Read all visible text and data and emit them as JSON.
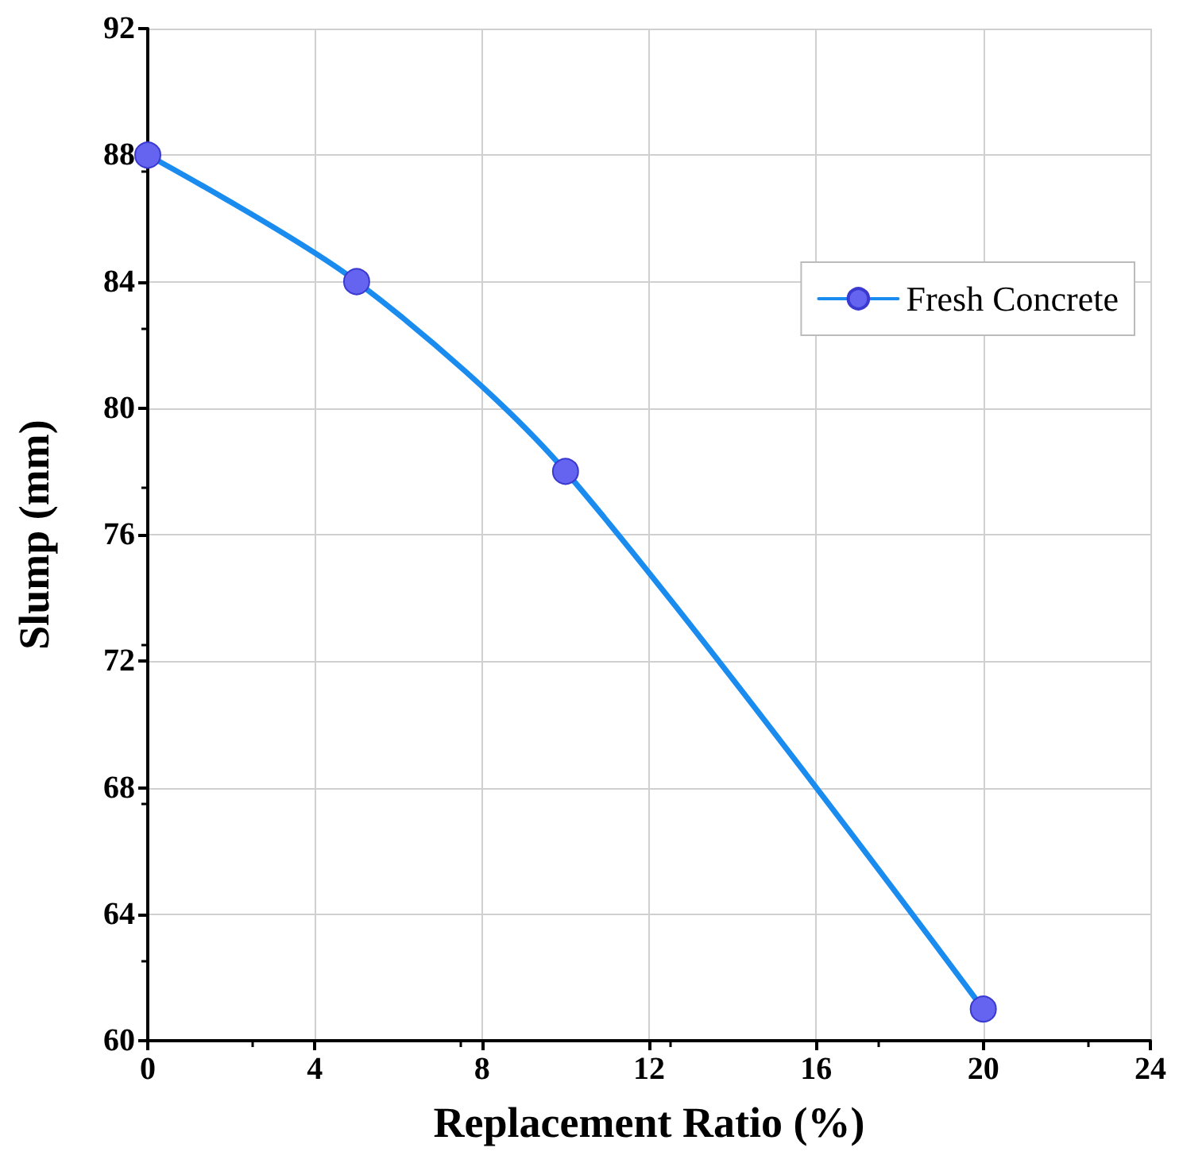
{
  "chart_data": {
    "type": "line",
    "xlabel": "Replacement Ratio (%)",
    "ylabel": "Slump (mm)",
    "x": [
      0,
      5,
      10,
      20
    ],
    "series": [
      {
        "name": "Fresh Concrete",
        "color": "#1a8cf0",
        "values": [
          88,
          84,
          78,
          61
        ]
      }
    ],
    "xlim": [
      0,
      24
    ],
    "xticks": [
      0,
      4,
      8,
      12,
      16,
      20,
      24
    ],
    "ylim": [
      60,
      92
    ],
    "yticks": [
      60,
      64,
      68,
      72,
      76,
      80,
      84,
      88,
      92
    ],
    "grid": true,
    "legend": "top right",
    "marker": "circle",
    "line_style": "solid"
  }
}
